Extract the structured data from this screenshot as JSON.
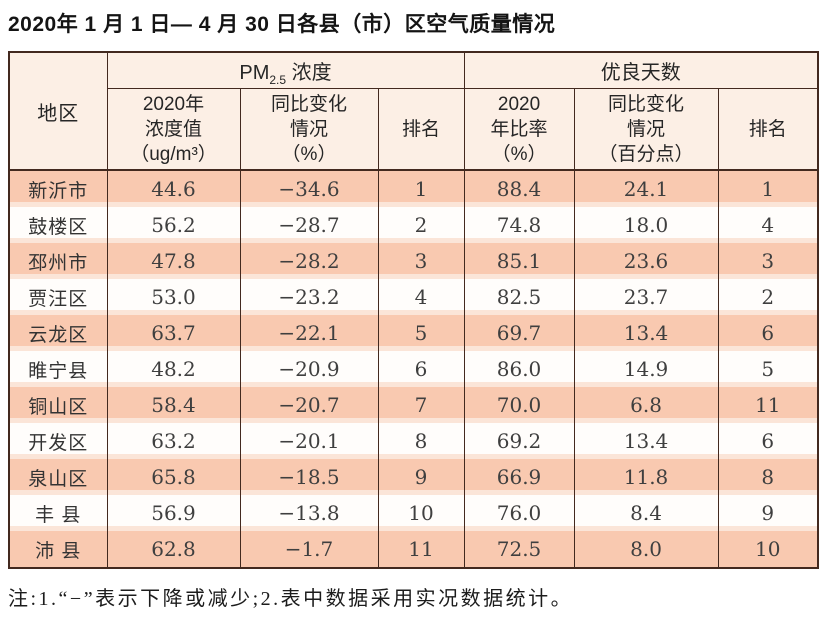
{
  "title": "2020年 1 月 1 日— 4 月 30 日各县（市）区空气质量情况",
  "note": "注:1.“−”表示下降或减少;2.表中数据采用实况数据统计。",
  "colors": {
    "border": "#43291f",
    "header_bg": "#fcefe5",
    "row_odd": "#f9c9b0",
    "row_even": "#fffdfb",
    "separator": "#fbe5d8"
  },
  "table": {
    "header": {
      "region": "地区",
      "pm_prefix": "PM",
      "pm_sub": "2.5",
      "pm_suffix": " 浓度",
      "good_days": "优良天数"
    },
    "sub_headers": [
      {
        "lines": [
          "2020年",
          "浓度值",
          "（ug/m³）"
        ]
      },
      {
        "lines": [
          "同比变化",
          "情况",
          "（%）"
        ]
      },
      {
        "lines": [
          "排名"
        ]
      },
      {
        "lines": [
          "2020",
          "年比率",
          "（%）"
        ]
      },
      {
        "lines": [
          "同比变化",
          "情况",
          "（百分点）"
        ]
      },
      {
        "lines": [
          "排名"
        ]
      }
    ],
    "rows": [
      {
        "region": "新沂市",
        "pm_value": "44.6",
        "pm_change": "−34.6",
        "pm_rank": "1",
        "days_ratio": "88.4",
        "days_change": "24.1",
        "days_rank": "1"
      },
      {
        "region": "鼓楼区",
        "pm_value": "56.2",
        "pm_change": "−28.7",
        "pm_rank": "2",
        "days_ratio": "74.8",
        "days_change": "18.0",
        "days_rank": "4"
      },
      {
        "region": "邳州市",
        "pm_value": "47.8",
        "pm_change": "−28.2",
        "pm_rank": "3",
        "days_ratio": "85.1",
        "days_change": "23.6",
        "days_rank": "3"
      },
      {
        "region": "贾汪区",
        "pm_value": "53.0",
        "pm_change": "−23.2",
        "pm_rank": "4",
        "days_ratio": "82.5",
        "days_change": "23.7",
        "days_rank": "2"
      },
      {
        "region": "云龙区",
        "pm_value": "63.7",
        "pm_change": "−22.1",
        "pm_rank": "5",
        "days_ratio": "69.7",
        "days_change": "13.4",
        "days_rank": "6"
      },
      {
        "region": "睢宁县",
        "pm_value": "48.2",
        "pm_change": "−20.9",
        "pm_rank": "6",
        "days_ratio": "86.0",
        "days_change": "14.9",
        "days_rank": "5"
      },
      {
        "region": "铜山区",
        "pm_value": "58.4",
        "pm_change": "−20.7",
        "pm_rank": "7",
        "days_ratio": "70.0",
        "days_change": "6.8",
        "days_rank": "11"
      },
      {
        "region": "开发区",
        "pm_value": "63.2",
        "pm_change": "−20.1",
        "pm_rank": "8",
        "days_ratio": "69.2",
        "days_change": "13.4",
        "days_rank": "6"
      },
      {
        "region": "泉山区",
        "pm_value": "65.8",
        "pm_change": "−18.5",
        "pm_rank": "9",
        "days_ratio": "66.9",
        "days_change": "11.8",
        "days_rank": "8"
      },
      {
        "region": "丰 县",
        "pm_value": "56.9",
        "pm_change": "−13.8",
        "pm_rank": "10",
        "days_ratio": "76.0",
        "days_change": "8.4",
        "days_rank": "9"
      },
      {
        "region": "沛 县",
        "pm_value": "62.8",
        "pm_change": "−1.7",
        "pm_rank": "11",
        "days_ratio": "72.5",
        "days_change": "8.0",
        "days_rank": "10"
      }
    ]
  }
}
